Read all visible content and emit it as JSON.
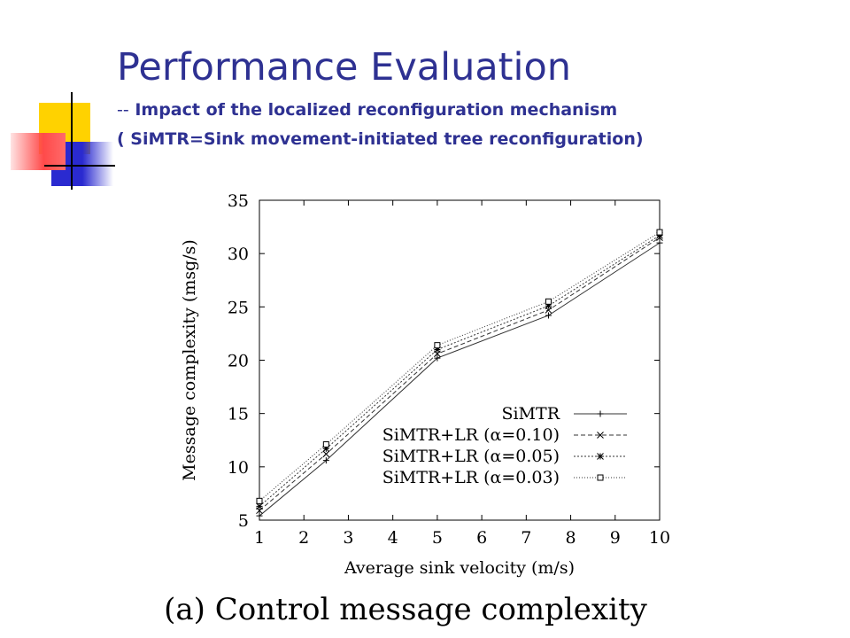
{
  "slide": {
    "title": "Performance Evaluation",
    "subtitle_dash": "--",
    "subtitle_line1": "Impact of the localized reconfiguration mechanism",
    "subtitle_line2": "( SiMTR=Sink movement-initiated tree reconfiguration)",
    "caption": "(a) Control message complexity"
  },
  "colors": {
    "title": "#2e3192",
    "deco_yellow": "#ffd200",
    "deco_blue": "#2a2ad0",
    "deco_red": "#ff4a4a"
  },
  "chart_data": {
    "type": "line",
    "title": "",
    "xlabel": "Average sink velocity (m/s)",
    "ylabel": "Message complexity (msg/s)",
    "xlim": [
      1,
      10
    ],
    "ylim": [
      5,
      35
    ],
    "xticks": [
      1,
      2,
      3,
      4,
      5,
      6,
      7,
      8,
      9,
      10
    ],
    "yticks": [
      5,
      10,
      15,
      20,
      25,
      30,
      35
    ],
    "grid": false,
    "legend_position": "lower-right",
    "x": [
      1,
      2.5,
      5,
      7.5,
      10
    ],
    "series": [
      {
        "name": "SiMTR",
        "values": [
          5.4,
          10.6,
          20.2,
          24.2,
          31.0
        ],
        "line": "solid",
        "marker": "+"
      },
      {
        "name": "SiMTR+LR (α=0.10)",
        "values": [
          5.9,
          11.2,
          20.6,
          24.7,
          31.5
        ],
        "line": "dashed",
        "marker": "x"
      },
      {
        "name": "SiMTR+LR (α=0.05)",
        "values": [
          6.3,
          11.7,
          21.0,
          25.1,
          31.7
        ],
        "line": "dotted",
        "marker": "*"
      },
      {
        "name": "SiMTR+LR (α=0.03)",
        "values": [
          6.8,
          12.1,
          21.4,
          25.5,
          32.0
        ],
        "line": "fine-dotted",
        "marker": "square"
      }
    ]
  }
}
